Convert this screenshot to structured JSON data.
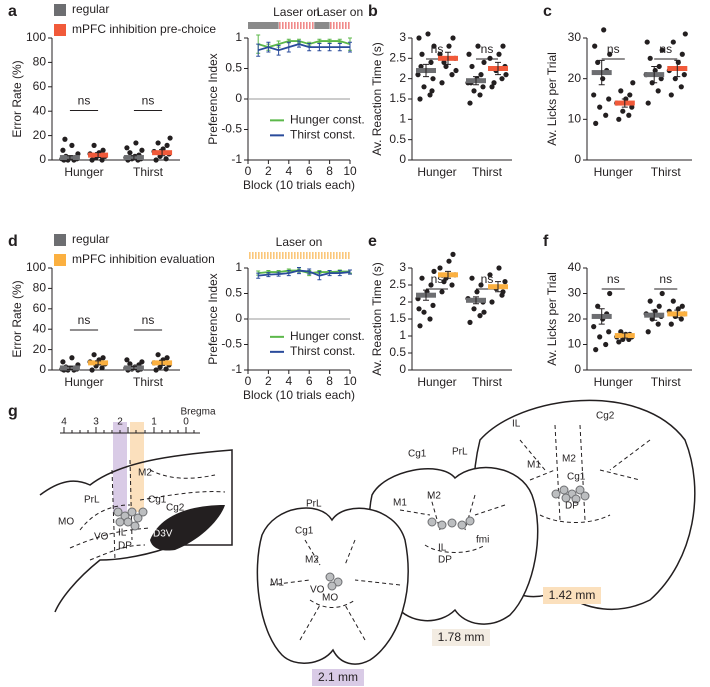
{
  "chart_data": [
    {
      "type": "dot",
      "label": "a",
      "ylabel": "Error Rate (%)",
      "categories": [
        "Hunger",
        "Thirst"
      ],
      "ylim": [
        0,
        100
      ],
      "yticks": [
        0,
        20,
        40,
        60,
        80,
        100
      ],
      "annotations": [
        "ns",
        "ns"
      ],
      "series": [
        {
          "name": "regular",
          "color": "#6d6e71",
          "values": [
            2,
            2
          ],
          "errors": [
            1.5,
            1.5
          ],
          "points": [
            [
              0,
              0,
              0,
              1,
              1,
              2,
              2,
              3,
              5,
              8,
              12,
              17
            ],
            [
              0,
              0,
              1,
              1,
              2,
              3,
              4,
              6,
              8,
              10,
              14
            ]
          ]
        },
        {
          "name": "mPFC inhibition pre-choice",
          "color": "#f15a3a",
          "values": [
            4,
            6
          ],
          "errors": [
            2,
            2.5
          ],
          "points": [
            [
              0,
              0,
              2,
              3,
              5,
              6,
              8,
              12
            ],
            [
              0,
              1,
              3,
              5,
              7,
              9,
              12,
              14,
              18
            ]
          ]
        }
      ]
    },
    {
      "type": "line",
      "ylabel": "Preference Index",
      "xlabel": "Block (10 trials each)",
      "xlim": [
        0,
        10
      ],
      "xticks": [
        0,
        2,
        4,
        6,
        8,
        10
      ],
      "ylim": [
        -1,
        1
      ],
      "yticks": [
        -1,
        -0.5,
        0,
        0.5,
        1
      ],
      "laser_text": [
        "Laser on",
        "Laser on"
      ],
      "laser_periods": [
        [
          3,
          6.5
        ],
        [
          8,
          10
        ]
      ],
      "laser_color": "#f08a8a",
      "off_color": "#8a8a8a",
      "x": [
        1,
        2,
        3,
        4,
        5,
        6,
        7,
        8,
        9,
        10
      ],
      "series": [
        {
          "name": "Hunger const.",
          "color": "#5cb84a",
          "values": [
            0.9,
            0.85,
            0.9,
            0.95,
            0.95,
            0.9,
            0.95,
            0.95,
            0.95,
            0.9
          ],
          "errors": [
            0.15,
            0.05,
            0.05,
            0.03,
            0.03,
            0.03,
            0.03,
            0.03,
            0.03,
            0.1
          ]
        },
        {
          "name": "Thirst const.",
          "color": "#2a4b9b",
          "values": [
            0.8,
            0.85,
            0.8,
            0.85,
            0.9,
            0.85,
            0.85,
            0.85,
            0.85,
            0.85
          ],
          "errors": [
            0.1,
            0.08,
            0.08,
            0.08,
            0.05,
            0.06,
            0.06,
            0.06,
            0.06,
            0.08
          ]
        }
      ]
    },
    {
      "type": "dot",
      "label": "b",
      "ylabel": "Av. Reaction Time (s)",
      "categories": [
        "Hunger",
        "Thirst"
      ],
      "ylim": [
        0,
        3
      ],
      "yticks": [
        0,
        0.5,
        1,
        1.5,
        2,
        2.5,
        3
      ],
      "annotations": [
        "ns",
        "ns"
      ],
      "series": [
        {
          "color": "#6d6e71",
          "values": [
            2.2,
            1.95
          ],
          "errors": [
            0.15,
            0.1
          ],
          "points": [
            [
              1.5,
              1.6,
              1.8,
              2.0,
              2.1,
              2.2,
              2.4,
              2.6,
              2.8,
              3.0,
              3.1,
              2.3,
              1.7
            ],
            [
              1.4,
              1.6,
              1.7,
              1.8,
              1.9,
              2.0,
              2.1,
              2.3,
              2.4,
              2.6,
              2.8,
              1.9
            ]
          ]
        },
        {
          "color": "#f15a3a",
          "values": [
            2.5,
            2.25
          ],
          "errors": [
            0.15,
            0.15
          ],
          "points": [
            [
              1.9,
              2.1,
              2.3,
              2.5,
              2.6,
              2.8,
              3.0,
              2.4,
              2.2
            ],
            [
              1.8,
              2.0,
              2.2,
              2.3,
              2.5,
              2.6,
              2.8,
              1.9,
              2.1
            ]
          ]
        }
      ]
    },
    {
      "type": "dot",
      "label": "c",
      "ylabel": "Av. Licks per Trial",
      "categories": [
        "Hunger",
        "Thirst"
      ],
      "ylim": [
        0,
        30
      ],
      "yticks": [
        0,
        10,
        20,
        30
      ],
      "annotations": [
        "ns",
        "ns"
      ],
      "series": [
        {
          "color": "#6d6e71",
          "values": [
            21.5,
            21
          ],
          "errors": [
            3,
            2
          ],
          "points": [
            [
              9,
              11,
              13,
              15,
              16,
              20,
              22,
              24,
              26,
              28,
              32
            ],
            [
              14,
              17,
              19,
              20,
              21,
              22,
              23,
              25,
              27,
              29
            ]
          ]
        },
        {
          "color": "#f15a3a",
          "values": [
            14,
            22.5
          ],
          "errors": [
            1,
            2
          ],
          "points": [
            [
              10,
              11,
              12,
              13,
              14,
              15,
              16,
              17,
              19
            ],
            [
              16,
              18,
              20,
              21,
              22,
              24,
              26,
              29,
              31
            ]
          ]
        }
      ]
    },
    {
      "type": "dot",
      "label": "d",
      "ylabel": "Error Rate (%)",
      "categories": [
        "Hunger",
        "Thirst"
      ],
      "ylim": [
        0,
        100
      ],
      "yticks": [
        0,
        20,
        40,
        60,
        80,
        100
      ],
      "annotations": [
        "ns",
        "ns"
      ],
      "series": [
        {
          "name": "regular",
          "color": "#6d6e71",
          "values": [
            2,
            2
          ],
          "errors": [
            1.5,
            1.5
          ],
          "points": [
            [
              0,
              0,
              0,
              1,
              1,
              2,
              2,
              3,
              5,
              8,
              12
            ],
            [
              0,
              0,
              1,
              1,
              2,
              3,
              5,
              6,
              8,
              10
            ]
          ]
        },
        {
          "name": "mPFC inhibition evaluation",
          "color": "#fbb040",
          "values": [
            7,
            7
          ],
          "errors": [
            2,
            2.5
          ],
          "points": [
            [
              0,
              2,
              4,
              6,
              8,
              10,
              12,
              15
            ],
            [
              0,
              1,
              3,
              5,
              7,
              10,
              12,
              15
            ]
          ]
        }
      ]
    },
    {
      "type": "line",
      "ylabel": "Preference Index",
      "xlabel": "Block (10 trials each)",
      "xlim": [
        0,
        10
      ],
      "xticks": [
        0,
        2,
        4,
        6,
        8,
        10
      ],
      "ylim": [
        -1,
        1
      ],
      "yticks": [
        -1,
        -0.5,
        0,
        0.5,
        1
      ],
      "laser_text": [
        "Laser on"
      ],
      "laser_periods": [
        [
          0,
          10
        ]
      ],
      "laser_color": "#fbc77a",
      "x": [
        1,
        2,
        3,
        4,
        5,
        6,
        7,
        8,
        9,
        10
      ],
      "series": [
        {
          "name": "Hunger const.",
          "color": "#5cb84a",
          "values": [
            0.9,
            0.92,
            0.92,
            0.95,
            0.95,
            0.9,
            0.92,
            0.92,
            0.93,
            0.93
          ],
          "errors": [
            0.04,
            0.03,
            0.03,
            0.03,
            0.03,
            0.05,
            0.03,
            0.03,
            0.03,
            0.03
          ]
        },
        {
          "name": "Thirst const.",
          "color": "#2a4b9b",
          "values": [
            0.85,
            0.87,
            0.88,
            0.9,
            0.95,
            0.93,
            0.85,
            0.9,
            0.9,
            0.92
          ],
          "errors": [
            0.05,
            0.04,
            0.04,
            0.05,
            0.06,
            0.05,
            0.08,
            0.05,
            0.05,
            0.04
          ]
        }
      ]
    },
    {
      "type": "dot",
      "label": "e",
      "ylabel": "Av. Reaction Time (s)",
      "categories": [
        "Hunger",
        "Thirst"
      ],
      "ylim": [
        0,
        3
      ],
      "yticks": [
        0,
        0.5,
        1,
        1.5,
        2,
        2.5,
        3
      ],
      "annotations": [
        "ns",
        "ns"
      ],
      "series": [
        {
          "color": "#6d6e71",
          "values": [
            2.2,
            2.05
          ],
          "errors": [
            0.15,
            0.1
          ],
          "points": [
            [
              1.3,
              1.5,
              1.7,
              1.9,
              2.1,
              2.3,
              2.5,
              2.7,
              2.9,
              1.8
            ],
            [
              1.4,
              1.6,
              1.8,
              2.0,
              2.1,
              2.3,
              2.5,
              2.7,
              1.7
            ]
          ]
        },
        {
          "color": "#fbb040",
          "values": [
            2.8,
            2.45
          ],
          "errors": [
            0.1,
            0.15
          ],
          "points": [
            [
              2.3,
              2.5,
              2.7,
              2.8,
              3.0,
              3.2,
              3.4,
              2.6
            ],
            [
              2.0,
              2.2,
              2.4,
              2.6,
              2.8,
              3.0,
              2.3
            ]
          ]
        }
      ]
    },
    {
      "type": "dot",
      "label": "f",
      "ylabel": "Av. Licks per Trial",
      "categories": [
        "Hunger",
        "Thirst"
      ],
      "ylim": [
        0,
        40
      ],
      "yticks": [
        0,
        10,
        20,
        30,
        40
      ],
      "annotations": [
        "ns",
        "ns"
      ],
      "series": [
        {
          "color": "#6d6e71",
          "values": [
            21,
            21.5
          ],
          "errors": [
            3,
            2
          ],
          "points": [
            [
              8,
              10,
              13,
              15,
              17,
              20,
              22,
              25,
              30
            ],
            [
              15,
              18,
              20,
              21,
              22,
              23,
              25,
              27,
              30
            ]
          ]
        },
        {
          "color": "#fbb040",
          "values": [
            13.5,
            22
          ],
          "errors": [
            1,
            1.5
          ],
          "points": [
            [
              11,
              12,
              12,
              13,
              13,
              14,
              14,
              15
            ],
            [
              18,
              20,
              21,
              22,
              23,
              24,
              25,
              27
            ]
          ]
        }
      ]
    }
  ],
  "diagram": {
    "label": "g",
    "ruler_label": "Bregma",
    "ruler_ticks": [
      "4",
      "3",
      "2",
      "1",
      "0"
    ],
    "sagittal_labels": [
      "M2",
      "PrL",
      "Cg1",
      "Cg2",
      "MO",
      "IL",
      "VO",
      "DP",
      "D3V"
    ],
    "sections": [
      {
        "depth": "2.1 mm",
        "labels": [
          "PrL",
          "Cg1",
          "M2",
          "M1",
          "VO",
          "MO"
        ]
      },
      {
        "depth": "1.78 mm",
        "labels": [
          "Cg1",
          "PrL",
          "M1",
          "M2",
          "IL",
          "DP",
          "fmi"
        ]
      },
      {
        "depth": "1.42 mm",
        "labels": [
          "IL",
          "Cg2",
          "M1",
          "M2",
          "Cg1",
          "DP"
        ]
      }
    ]
  }
}
